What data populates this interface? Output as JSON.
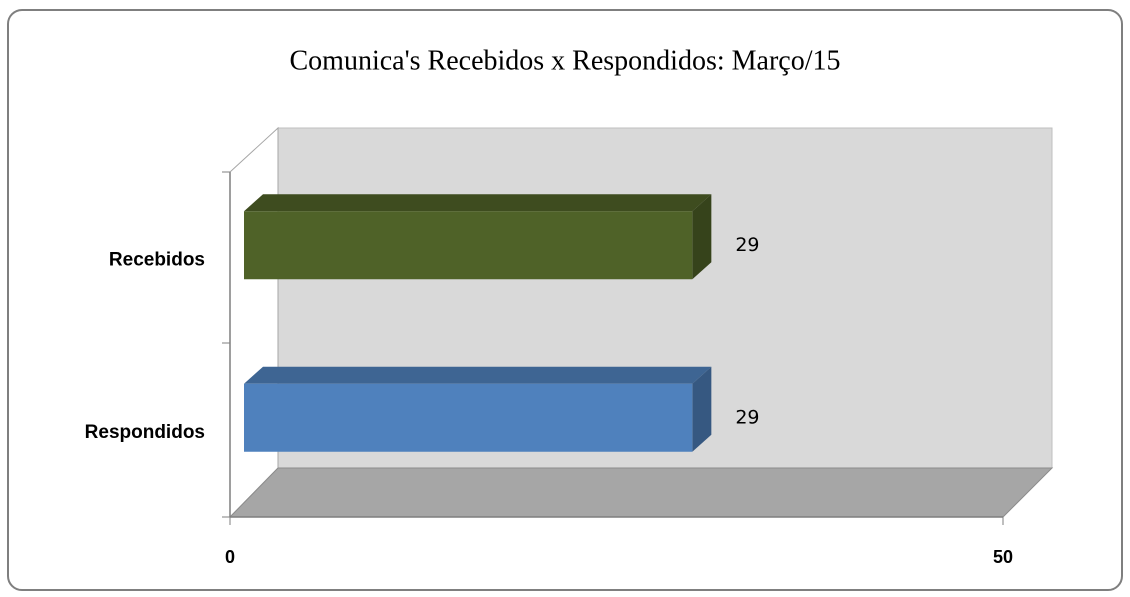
{
  "chart_data": {
    "type": "bar3d_horizontal",
    "title": "Comunica's Recebidos x Respondidos:  Março/15",
    "categories": [
      "Recebidos",
      "Respondidos"
    ],
    "values": [
      29,
      29
    ],
    "colors": [
      "#4f6228",
      "#4f81bd"
    ],
    "xlim": [
      0,
      50
    ],
    "xticks": [
      0,
      50
    ]
  }
}
